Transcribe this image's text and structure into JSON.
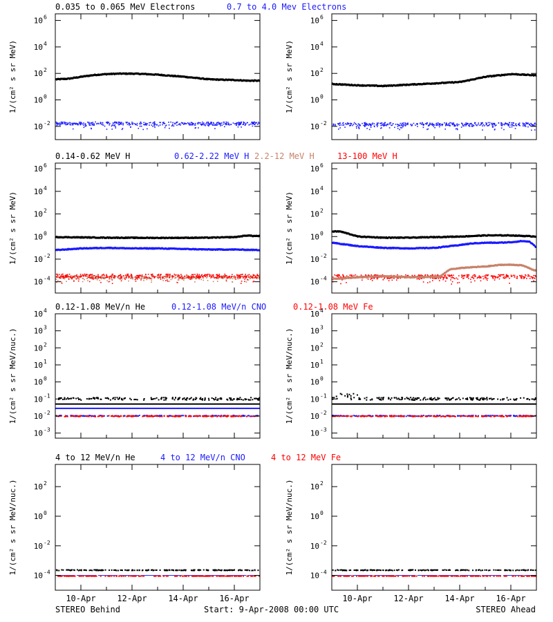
{
  "colors": {
    "black": "#000000",
    "blue": "#1a1aff",
    "salmon": "#c8826a",
    "red": "#ff0000"
  },
  "footer": {
    "left": "STEREO Behind",
    "center": "Start:  9-Apr-2008 00:00 UTC",
    "right": "STEREO Ahead"
  },
  "x_ticks": [
    "10-Apr",
    "12-Apr",
    "14-Apr",
    "16-Apr"
  ],
  "chart_data": [
    {
      "type": "scatter",
      "row": 0,
      "ylabel": "1/(cm² s sr MeV)",
      "log_y": true,
      "ylim_exp": [
        -3,
        6.5
      ],
      "yticks_exp": [
        -2,
        0,
        2,
        4,
        6
      ],
      "xlim_days": [
        0,
        8
      ],
      "legend": [
        {
          "text": "0.035 to 0.065 MeV Electrons",
          "color": "#000000"
        },
        {
          "text": "0.7 to 4.0 Mev Electrons",
          "color": "#1a1aff"
        }
      ],
      "panels": [
        {
          "side": "STEREO Behind",
          "series": [
            {
              "name": "0.035 to 0.065 MeV Electrons",
              "color": "#000000",
              "style": "line",
              "points": [
                [
                  0,
                  1.55
                ],
                [
                  0.5,
                  1.6
                ],
                [
                  1,
                  1.75
                ],
                [
                  1.5,
                  1.88
                ],
                [
                  2,
                  1.95
                ],
                [
                  2.5,
                  1.98
                ],
                [
                  3,
                  1.98
                ],
                [
                  3.5,
                  1.95
                ],
                [
                  4,
                  1.9
                ],
                [
                  4.5,
                  1.82
                ],
                [
                  5,
                  1.75
                ],
                [
                  5.5,
                  1.65
                ],
                [
                  6,
                  1.55
                ],
                [
                  6.5,
                  1.52
                ],
                [
                  7,
                  1.5
                ],
                [
                  7.5,
                  1.45
                ],
                [
                  8,
                  1.45
                ]
              ]
            },
            {
              "name": "0.7 to 4.0 Mev Electrons",
              "color": "#1a1aff",
              "style": "noisy",
              "base": -1.75,
              "spread": 0.25
            }
          ]
        },
        {
          "side": "STEREO Ahead",
          "series": [
            {
              "name": "0.035 to 0.065 MeV Electrons",
              "color": "#000000",
              "style": "line",
              "points": [
                [
                  0,
                  1.2
                ],
                [
                  1,
                  1.1
                ],
                [
                  2,
                  1.05
                ],
                [
                  3,
                  1.15
                ],
                [
                  4,
                  1.25
                ],
                [
                  5,
                  1.35
                ],
                [
                  5.5,
                  1.55
                ],
                [
                  6,
                  1.75
                ],
                [
                  6.5,
                  1.85
                ],
                [
                  7,
                  1.95
                ],
                [
                  7.5,
                  1.9
                ],
                [
                  8,
                  1.85
                ]
              ]
            },
            {
              "name": "0.7 to 4.0 Mev Electrons",
              "color": "#1a1aff",
              "style": "noisy",
              "base": -1.8,
              "spread": 0.25
            }
          ]
        }
      ]
    },
    {
      "type": "scatter",
      "row": 1,
      "ylabel": "1/(cm² s sr MeV)",
      "log_y": true,
      "ylim_exp": [
        -5,
        6.5
      ],
      "yticks_exp": [
        -4,
        -2,
        0,
        2,
        4,
        6
      ],
      "xlim_days": [
        0,
        8
      ],
      "legend": [
        {
          "text": "0.14-0.62 MeV H",
          "color": "#000000"
        },
        {
          "text": "0.62-2.22 MeV H",
          "color": "#1a1aff"
        },
        {
          "text": "2.2-12 MeV H",
          "color": "#c8826a"
        },
        {
          "text": "13-100 MeV H",
          "color": "#ff0000"
        }
      ],
      "panels": [
        {
          "side": "STEREO Behind",
          "series": [
            {
              "name": "2.2-12 MeV H",
              "color": "#c8826a",
              "style": "noisy",
              "base": -3.55,
              "spread": 0.3
            },
            {
              "name": "13-100 MeV H",
              "color": "#ff0000",
              "style": "noisy",
              "base": -3.45,
              "spread": 0.35
            },
            {
              "name": "0.14-0.62 MeV H",
              "color": "#000000",
              "style": "line",
              "points": [
                [
                  0,
                  -0.05
                ],
                [
                  2,
                  -0.1
                ],
                [
                  4,
                  -0.12
                ],
                [
                  6,
                  -0.1
                ],
                [
                  7,
                  -0.05
                ],
                [
                  7.5,
                  0.1
                ],
                [
                  7.7,
                  0.05
                ],
                [
                  8,
                  0.05
                ]
              ]
            },
            {
              "name": "0.62-2.22 MeV H",
              "color": "#1a1aff",
              "style": "line",
              "points": [
                [
                  0,
                  -1.2
                ],
                [
                  1,
                  -1.05
                ],
                [
                  2,
                  -1.0
                ],
                [
                  3,
                  -1.05
                ],
                [
                  4,
                  -1.05
                ],
                [
                  5,
                  -1.1
                ],
                [
                  6,
                  -1.15
                ],
                [
                  7,
                  -1.15
                ],
                [
                  8,
                  -1.2
                ]
              ]
            }
          ]
        },
        {
          "side": "STEREO Ahead",
          "series": [
            {
              "name": "13-100 MeV H",
              "color": "#ff0000",
              "style": "noisy",
              "base": -3.5,
              "spread": 0.35
            },
            {
              "name": "2.2-12 MeV H",
              "color": "#c8826a",
              "style": "line",
              "points": [
                [
                  0,
                  -3.75
                ],
                [
                  1,
                  -3.6
                ],
                [
                  2,
                  -3.5
                ],
                [
                  3,
                  -3.6
                ],
                [
                  4.2,
                  -3.55
                ],
                [
                  4.6,
                  -2.9
                ],
                [
                  5.2,
                  -2.75
                ],
                [
                  6,
                  -2.65
                ],
                [
                  6.6,
                  -2.5
                ],
                [
                  7.1,
                  -2.5
                ],
                [
                  7.4,
                  -2.55
                ],
                [
                  7.6,
                  -2.7
                ],
                [
                  7.9,
                  -3.0
                ]
              ]
            },
            {
              "name": "0.14-0.62 MeV H",
              "color": "#000000",
              "style": "line",
              "points": [
                [
                  0,
                  0.45
                ],
                [
                  0.3,
                  0.45
                ],
                [
                  0.7,
                  0.2
                ],
                [
                  1,
                  0.0
                ],
                [
                  2,
                  -0.1
                ],
                [
                  3,
                  -0.1
                ],
                [
                  4,
                  -0.05
                ],
                [
                  5,
                  0.0
                ],
                [
                  6,
                  0.1
                ],
                [
                  7,
                  0.1
                ],
                [
                  7.5,
                  0.05
                ],
                [
                  8,
                  0.0
                ]
              ]
            },
            {
              "name": "0.62-2.22 MeV H",
              "color": "#1a1aff",
              "style": "line",
              "points": [
                [
                  0,
                  -0.55
                ],
                [
                  1,
                  -0.85
                ],
                [
                  2,
                  -1.0
                ],
                [
                  3,
                  -1.05
                ],
                [
                  4,
                  -1.0
                ],
                [
                  4.8,
                  -0.8
                ],
                [
                  5.5,
                  -0.6
                ],
                [
                  6,
                  -0.55
                ],
                [
                  6.5,
                  -0.55
                ],
                [
                  7,
                  -0.5
                ],
                [
                  7.4,
                  -0.4
                ],
                [
                  7.7,
                  -0.45
                ],
                [
                  8,
                  -1.0
                ]
              ]
            }
          ]
        }
      ]
    },
    {
      "type": "scatter",
      "row": 2,
      "ylabel": "1/(cm² s sr MeV/nuc.)",
      "log_y": true,
      "ylim_exp": [
        -3.3,
        4
      ],
      "yticks_exp": [
        -3,
        -2,
        -1,
        0,
        1,
        2,
        3,
        4
      ],
      "xlim_days": [
        0,
        8
      ],
      "legend": [
        {
          "text": "0.12-1.08 MeV/n He",
          "color": "#000000"
        },
        {
          "text": "0.12-1.08 MeV/n CNO",
          "color": "#1a1aff"
        },
        {
          "text": "0.12-1.08 MeV Fe",
          "color": "#ff0000"
        }
      ],
      "panels": [
        {
          "side": "STEREO Behind",
          "series": [
            {
              "name": "0.12-1.08 MeV/n He",
              "color": "#000000",
              "style": "sparse",
              "base": -0.95,
              "spread": 0.15,
              "ref": -1.3
            },
            {
              "name": "0.12-1.08 MeV/n CNO",
              "color": "#1a1aff",
              "style": "sparse",
              "base": -1.95,
              "spread": 0.05,
              "ref": -1.55
            },
            {
              "name": "0.12-1.08 MeV Fe",
              "color": "#ff0000",
              "style": "sparse",
              "base": -1.97,
              "spread": 0.05
            }
          ]
        },
        {
          "side": "STEREO Ahead",
          "series": [
            {
              "name": "0.12-1.08 MeV/n He",
              "color": "#000000",
              "style": "sparse",
              "base": -0.95,
              "spread": 0.15,
              "ref": -1.3,
              "early_boost": 0.35
            },
            {
              "name": "0.12-1.08 MeV/n CNO",
              "color": "#1a1aff",
              "style": "sparse",
              "base": -1.95,
              "spread": 0.05
            },
            {
              "name": "0.12-1.08 MeV Fe",
              "color": "#ff0000",
              "style": "sparse",
              "base": -1.97,
              "spread": 0.05
            }
          ]
        }
      ]
    },
    {
      "type": "scatter",
      "row": 3,
      "ylabel": "1/(cm² s sr MeV/nuc.)",
      "log_y": true,
      "ylim_exp": [
        -5,
        3.5
      ],
      "yticks_exp": [
        -4,
        -2,
        0,
        2
      ],
      "xlim_days": [
        0,
        8
      ],
      "legend": [
        {
          "text": "4 to 12 MeV/n He",
          "color": "#000000"
        },
        {
          "text": "4 to 12 MeV/n CNO",
          "color": "#1a1aff"
        },
        {
          "text": "4 to 12 MeV Fe",
          "color": "#ff0000"
        }
      ],
      "panels": [
        {
          "side": "STEREO Behind",
          "series": [
            {
              "name": "4 to 12 MeV/n He",
              "color": "#000000",
              "style": "sparse",
              "base": -3.6,
              "spread": 0.05
            },
            {
              "name": "4 to 12 MeV/n CNO",
              "color": "#1a1aff",
              "style": "dashline",
              "base": -4.0
            },
            {
              "name": "4 to 12 MeV Fe",
              "color": "#ff0000",
              "style": "sparse",
              "base": -4.0,
              "spread": 0.0
            }
          ]
        },
        {
          "side": "STEREO Ahead",
          "series": [
            {
              "name": "4 to 12 MeV/n He",
              "color": "#000000",
              "style": "sparse",
              "base": -3.6,
              "spread": 0.05
            },
            {
              "name": "4 to 12 MeV/n CNO",
              "color": "#1a1aff",
              "style": "dashline",
              "base": -4.0
            },
            {
              "name": "4 to 12 MeV Fe",
              "color": "#ff0000",
              "style": "sparse",
              "base": -4.0,
              "spread": 0.0
            }
          ]
        }
      ]
    }
  ]
}
